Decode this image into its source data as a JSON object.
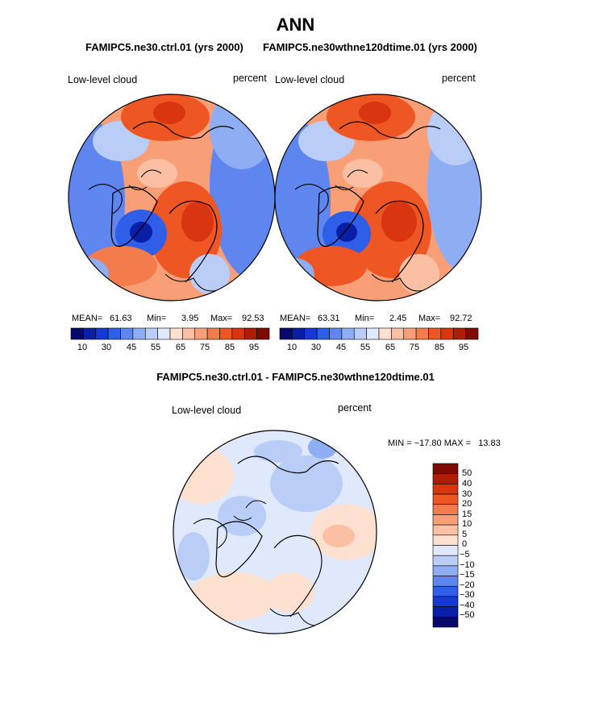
{
  "title": "ANN",
  "panels": [
    {
      "case": "FAMIPC5.ne30.ctrl.01 (yrs 2000)",
      "variable": "Low-level cloud",
      "units": "percent",
      "mean_label": "MEAN=",
      "mean": "61.63",
      "min_label": "Min=",
      "min": "3.95",
      "max_label": "Max=",
      "max": "92.53"
    },
    {
      "case": "FAMIPC5.ne30wthne120dtime.01 (yrs 2000)",
      "variable": "Low-level cloud",
      "units": "percent",
      "mean_label": "MEAN=",
      "mean": "63.31",
      "min_label": "Min=",
      "min": "2.45",
      "max_label": "Max=",
      "max": "92.72"
    }
  ],
  "diff": {
    "title": "FAMIPC5.ne30.ctrl.01 - FAMIPC5.ne30wthne120dtime.01",
    "variable": "Low-level cloud",
    "units": "percent",
    "minmax_text": "MIN = −17.80 MAX =   13.83"
  },
  "colorbar_abs": {
    "colors": [
      "#08086b",
      "#0a1fa8",
      "#1538d6",
      "#2f5ee8",
      "#5f86ef",
      "#8eadf3",
      "#b9cdf7",
      "#dfe9fb",
      "#fde0cf",
      "#fbbfa3",
      "#f89f78",
      "#f47c4c",
      "#ee5624",
      "#d83510",
      "#b01d06",
      "#7f0a00"
    ],
    "ticks": [
      "10",
      "30",
      "45",
      "55",
      "65",
      "75",
      "85",
      "95"
    ]
  },
  "colorbar_diff": {
    "colors": [
      "#7f0a00",
      "#b01d06",
      "#d83510",
      "#ee5624",
      "#f47c4c",
      "#f89f78",
      "#fbbfa3",
      "#fde0cf",
      "#dfe9fb",
      "#b9cdf7",
      "#8eadf3",
      "#5f86ef",
      "#2f5ee8",
      "#1538d6",
      "#0a1fa8",
      "#08086b"
    ],
    "ticks": [
      "50",
      "40",
      "30",
      "20",
      "15",
      "10",
      "5",
      "0",
      "−5",
      "−10",
      "−15",
      "−20",
      "−30",
      "−40",
      "−50"
    ]
  }
}
